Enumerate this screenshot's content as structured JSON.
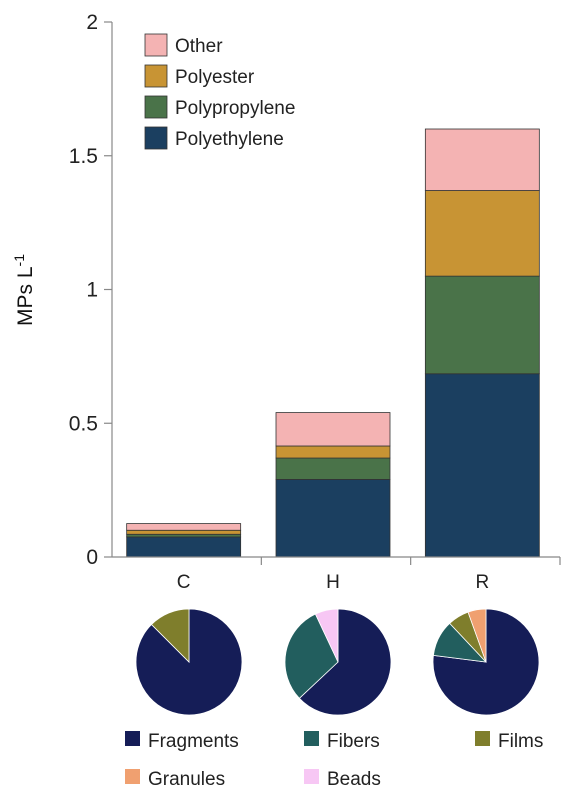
{
  "chart_data": [
    {
      "type": "bar",
      "stacked": true,
      "categories": [
        "C",
        "H",
        "R"
      ],
      "ylabel": "MPs L",
      "ylabel_superscript": "-1",
      "ylim": [
        0,
        2
      ],
      "yticks": [
        "0",
        "0.5",
        "1",
        "1.5",
        "2"
      ],
      "grid": false,
      "legend_position": "top-left",
      "series": [
        {
          "name": "Polyethylene",
          "color": "#1b3f60",
          "values": [
            0.075,
            0.29,
            0.685
          ]
        },
        {
          "name": "Polypropylene",
          "color": "#4a7349",
          "values": [
            0.01,
            0.08,
            0.365
          ]
        },
        {
          "name": "Polyester",
          "color": "#c89434",
          "values": [
            0.015,
            0.045,
            0.32
          ]
        },
        {
          "name": "Other",
          "color": "#f4b3b3",
          "values": [
            0.025,
            0.125,
            0.23
          ]
        }
      ]
    },
    {
      "type": "pie",
      "categories": [
        "C",
        "H",
        "R"
      ],
      "legend_position": "bottom",
      "slice_names": [
        "Fragments",
        "Fibers",
        "Films",
        "Granules",
        "Beads"
      ],
      "slice_colors": [
        "#151d57",
        "#225e5e",
        "#7f7e2c",
        "#f0a070",
        "#f7c7f4"
      ],
      "pies": [
        {
          "category": "C",
          "values": [
            87.5,
            0,
            12.5,
            0,
            0
          ]
        },
        {
          "category": "H",
          "values": [
            63,
            30,
            0,
            0,
            7
          ]
        },
        {
          "category": "R",
          "values": [
            77,
            11,
            6.5,
            5.5,
            0
          ]
        }
      ]
    }
  ]
}
